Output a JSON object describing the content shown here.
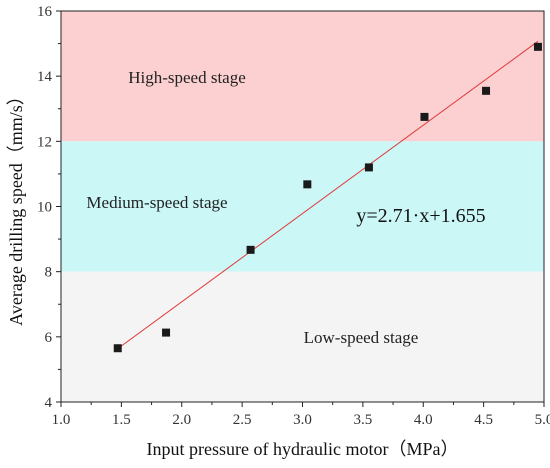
{
  "chart_data": {
    "type": "scatter",
    "xlabel": "Input pressure of hydraulic motor（MPa）",
    "ylabel": "Average drilling speed（mm/s）",
    "xlim": [
      1.0,
      5.0
    ],
    "ylim": [
      4,
      16
    ],
    "xticks": [
      "1.0",
      "1.5",
      "2.0",
      "2.5",
      "3.0",
      "3.5",
      "4.0",
      "4.5",
      "5.0"
    ],
    "yticks": [
      "4",
      "6",
      "8",
      "10",
      "12",
      "14",
      "16"
    ],
    "grid": false,
    "points": [
      {
        "x": 1.47,
        "y": 5.65
      },
      {
        "x": 1.87,
        "y": 6.13
      },
      {
        "x": 2.57,
        "y": 8.67
      },
      {
        "x": 3.04,
        "y": 10.68
      },
      {
        "x": 3.55,
        "y": 11.2
      },
      {
        "x": 4.01,
        "y": 12.75
      },
      {
        "x": 4.52,
        "y": 13.55
      },
      {
        "x": 4.95,
        "y": 14.9
      }
    ],
    "fit_line": {
      "equation": "y=2.71·x+1.655",
      "slope": 2.71,
      "intercept": 1.655,
      "x_range": [
        1.47,
        4.95
      ],
      "color": "#e03a3a"
    },
    "bands": [
      {
        "label": "High-speed stage",
        "y_range": [
          12,
          16
        ],
        "color": "#fcd0d0"
      },
      {
        "label": "Medium-speed stage",
        "y_range": [
          8,
          12
        ],
        "color": "#ccf7f7"
      },
      {
        "label": "Low-speed stage",
        "y_range": [
          4,
          8
        ],
        "color": "#f4f4f4"
      }
    ],
    "marker_color": "#1a1a1a"
  }
}
